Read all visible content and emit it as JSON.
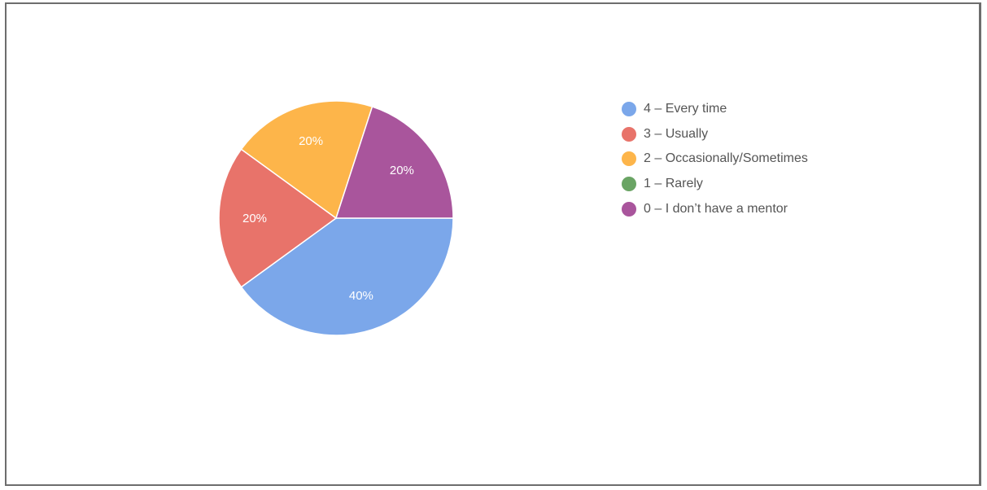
{
  "chart_data": {
    "type": "pie",
    "slices": [
      {
        "label": "4 – Every time",
        "value": 40,
        "display": "40%",
        "color": "#7ba7ea"
      },
      {
        "label": "3 – Usually",
        "value": 20,
        "display": "20%",
        "color": "#e8736a"
      },
      {
        "label": "2 – Occasionally/Sometimes",
        "value": 20,
        "display": "20%",
        "color": "#fdb54a"
      },
      {
        "label": "1 – Rarely",
        "value": 0,
        "display": "",
        "color": "#6aa464"
      },
      {
        "label": "0 – I don’t have a mentor",
        "value": 20,
        "display": "20%",
        "color": "#a9559c"
      }
    ],
    "legend_position": "right"
  }
}
